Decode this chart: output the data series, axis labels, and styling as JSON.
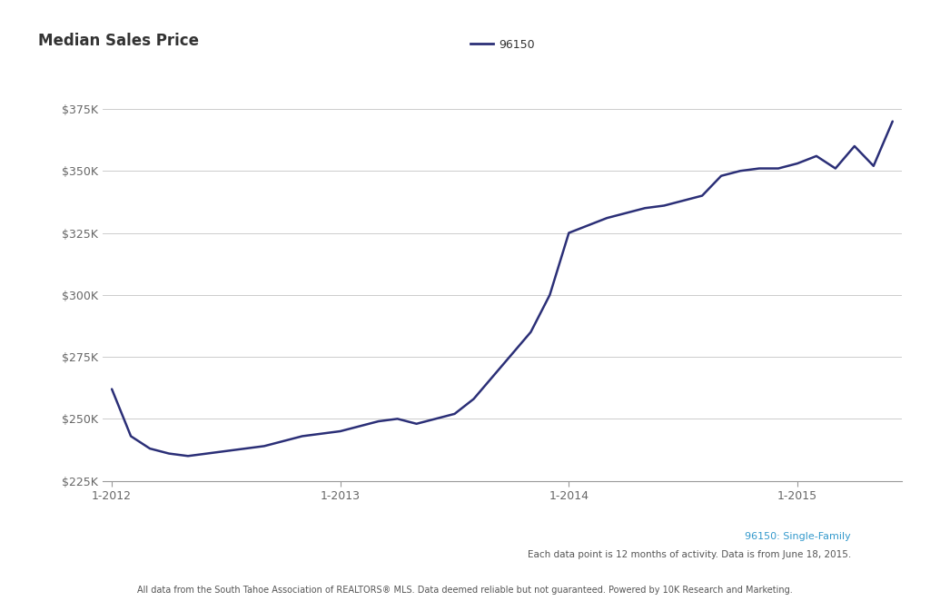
{
  "title": "Median Sales Price",
  "legend_label": "96150",
  "subtitle_label": "96150: Single-Family",
  "footnote1": "Each data point is 12 months of activity. Data is from June 18, 2015.",
  "footnote2": "All data from the South Tahoe Association of REALTORS® MLS. Data deemed reliable but not guaranteed. Powered by 10K Research and Marketing.",
  "line_color": "#2b2f77",
  "subtitle_color": "#3399cc",
  "background_color": "#ffffff",
  "ylim": [
    225000,
    385000
  ],
  "yticks": [
    225000,
    250000,
    275000,
    300000,
    325000,
    350000,
    375000
  ],
  "ytick_labels": [
    "$225K",
    "$250K",
    "$275K",
    "$300K",
    "$325K",
    "$350K",
    "$375K"
  ],
  "xtick_labels": [
    "1-2012",
    "1-2013",
    "1-2014",
    "1-2015"
  ],
  "x_values": [
    0,
    1,
    2,
    3,
    4,
    5,
    6,
    7,
    8,
    9,
    10,
    11,
    12,
    13,
    14,
    15,
    16,
    17,
    18,
    19,
    20,
    21,
    22,
    23,
    24,
    25,
    26,
    27,
    28,
    29,
    30,
    31,
    32,
    33,
    34,
    35,
    36,
    37,
    38,
    39,
    40,
    41
  ],
  "y_values": [
    262000,
    243000,
    238000,
    236000,
    235000,
    236000,
    237000,
    238000,
    239000,
    241000,
    243000,
    244000,
    245000,
    247000,
    249000,
    250000,
    248000,
    250000,
    252000,
    258000,
    267000,
    276000,
    285000,
    300000,
    325000,
    328000,
    331000,
    333000,
    335000,
    336000,
    338000,
    340000,
    348000,
    350000,
    351000,
    351000,
    353000,
    356000,
    351000,
    360000,
    352000,
    370000
  ],
  "xtick_positions": [
    0,
    12,
    24,
    36
  ]
}
